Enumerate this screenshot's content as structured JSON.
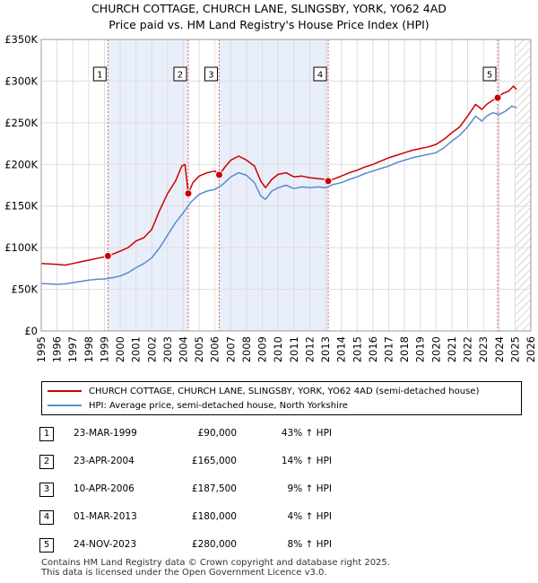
{
  "title_line1": "CHURCH COTTAGE, CHURCH LANE, SLINGSBY, YORK, YO62 4AD",
  "title_line2": "Price paid vs. HM Land Registry's House Price Index (HPI)",
  "chart_data": {
    "type": "line",
    "xlim": [
      1995,
      2026
    ],
    "ylim": [
      0,
      350000
    ],
    "x_ticks": [
      1995,
      1996,
      1997,
      1998,
      1999,
      2000,
      2001,
      2002,
      2003,
      2004,
      2005,
      2006,
      2007,
      2008,
      2009,
      2010,
      2011,
      2012,
      2013,
      2014,
      2015,
      2016,
      2017,
      2018,
      2019,
      2020,
      2021,
      2022,
      2023,
      2024,
      2025,
      2026
    ],
    "y_ticks": [
      {
        "value": 0,
        "label": "£0"
      },
      {
        "value": 50000,
        "label": "£50K"
      },
      {
        "value": 100000,
        "label": "£100K"
      },
      {
        "value": 150000,
        "label": "£150K"
      },
      {
        "value": 200000,
        "label": "£200K"
      },
      {
        "value": 250000,
        "label": "£250K"
      },
      {
        "value": 300000,
        "label": "£300K"
      },
      {
        "value": 350000,
        "label": "£350K"
      }
    ],
    "shaded_periods": [
      [
        1999.22,
        2004.31
      ],
      [
        2006.27,
        2013.17
      ],
      [
        2023.9,
        2024.0
      ]
    ],
    "future_hatch_from": 2025.0,
    "series": [
      {
        "name": "CHURCH COTTAGE, CHURCH LANE, SLINGSBY, YORK, YO62 4AD (semi-detached house)",
        "color": "#cc0000",
        "points": [
          [
            1995,
            81000
          ],
          [
            1995.5,
            80500
          ],
          [
            1996,
            80000
          ],
          [
            1996.5,
            79000
          ],
          [
            1997,
            81000
          ],
          [
            1997.5,
            83000
          ],
          [
            1998,
            85000
          ],
          [
            1998.5,
            87000
          ],
          [
            1999,
            89000
          ],
          [
            1999.22,
            90000
          ],
          [
            1999.5,
            92000
          ],
          [
            2000,
            96000
          ],
          [
            2000.5,
            100000
          ],
          [
            2001,
            108000
          ],
          [
            2001.5,
            112000
          ],
          [
            2002,
            122000
          ],
          [
            2002.5,
            145000
          ],
          [
            2003,
            165000
          ],
          [
            2003.5,
            180000
          ],
          [
            2003.9,
            198000
          ],
          [
            2004.1,
            200000
          ],
          [
            2004.31,
            165000
          ],
          [
            2004.6,
            178000
          ],
          [
            2005,
            186000
          ],
          [
            2005.5,
            190000
          ],
          [
            2006,
            192000
          ],
          [
            2006.27,
            187500
          ],
          [
            2006.6,
            196000
          ],
          [
            2007,
            205000
          ],
          [
            2007.5,
            210000
          ],
          [
            2008,
            205000
          ],
          [
            2008.5,
            198000
          ],
          [
            2008.9,
            180000
          ],
          [
            2009.2,
            172000
          ],
          [
            2009.6,
            182000
          ],
          [
            2010,
            188000
          ],
          [
            2010.5,
            190000
          ],
          [
            2011,
            185000
          ],
          [
            2011.5,
            186000
          ],
          [
            2012,
            184000
          ],
          [
            2012.5,
            183000
          ],
          [
            2013,
            182000
          ],
          [
            2013.17,
            180000
          ],
          [
            2013.6,
            183000
          ],
          [
            2014,
            186000
          ],
          [
            2014.5,
            190000
          ],
          [
            2015,
            193000
          ],
          [
            2015.5,
            197000
          ],
          [
            2016,
            200000
          ],
          [
            2016.5,
            204000
          ],
          [
            2017,
            208000
          ],
          [
            2017.5,
            211000
          ],
          [
            2018,
            214000
          ],
          [
            2018.5,
            217000
          ],
          [
            2019,
            219000
          ],
          [
            2019.5,
            221000
          ],
          [
            2020,
            224000
          ],
          [
            2020.5,
            230000
          ],
          [
            2021,
            238000
          ],
          [
            2021.5,
            245000
          ],
          [
            2022,
            258000
          ],
          [
            2022.5,
            272000
          ],
          [
            2022.9,
            266000
          ],
          [
            2023.2,
            272000
          ],
          [
            2023.6,
            277000
          ],
          [
            2023.9,
            280000
          ],
          [
            2024.2,
            285000
          ],
          [
            2024.6,
            288000
          ],
          [
            2024.9,
            294000
          ],
          [
            2025.1,
            290000
          ]
        ]
      },
      {
        "name": "HPI: Average price, semi-detached house, North Yorkshire",
        "color": "#5a8ccd",
        "points": [
          [
            1995,
            57000
          ],
          [
            1995.5,
            56500
          ],
          [
            1996,
            56000
          ],
          [
            1996.5,
            56500
          ],
          [
            1997,
            58000
          ],
          [
            1997.5,
            59500
          ],
          [
            1998,
            61000
          ],
          [
            1998.5,
            62000
          ],
          [
            1999,
            62500
          ],
          [
            1999.5,
            64000
          ],
          [
            2000,
            66000
          ],
          [
            2000.5,
            70000
          ],
          [
            2001,
            76000
          ],
          [
            2001.5,
            81000
          ],
          [
            2002,
            88000
          ],
          [
            2002.5,
            100000
          ],
          [
            2003,
            115000
          ],
          [
            2003.5,
            130000
          ],
          [
            2004,
            142000
          ],
          [
            2004.5,
            155000
          ],
          [
            2005,
            164000
          ],
          [
            2005.5,
            168000
          ],
          [
            2006,
            170000
          ],
          [
            2006.5,
            176000
          ],
          [
            2007,
            185000
          ],
          [
            2007.5,
            190000
          ],
          [
            2008,
            187000
          ],
          [
            2008.5,
            178000
          ],
          [
            2008.9,
            162000
          ],
          [
            2009.2,
            158000
          ],
          [
            2009.6,
            168000
          ],
          [
            2010,
            172000
          ],
          [
            2010.5,
            175000
          ],
          [
            2011,
            171000
          ],
          [
            2011.5,
            173000
          ],
          [
            2012,
            172000
          ],
          [
            2012.5,
            173000
          ],
          [
            2013,
            172000
          ],
          [
            2013.5,
            176000
          ],
          [
            2014,
            178000
          ],
          [
            2014.5,
            182000
          ],
          [
            2015,
            185000
          ],
          [
            2015.5,
            189000
          ],
          [
            2016,
            192000
          ],
          [
            2016.5,
            195000
          ],
          [
            2017,
            198000
          ],
          [
            2017.5,
            202000
          ],
          [
            2018,
            205000
          ],
          [
            2018.5,
            208000
          ],
          [
            2019,
            210000
          ],
          [
            2019.5,
            212000
          ],
          [
            2020,
            214000
          ],
          [
            2020.5,
            220000
          ],
          [
            2021,
            228000
          ],
          [
            2021.5,
            235000
          ],
          [
            2022,
            245000
          ],
          [
            2022.5,
            258000
          ],
          [
            2022.9,
            252000
          ],
          [
            2023.2,
            258000
          ],
          [
            2023.6,
            262000
          ],
          [
            2024,
            260000
          ],
          [
            2024.4,
            264000
          ],
          [
            2024.8,
            270000
          ],
          [
            2025.1,
            268000
          ]
        ]
      }
    ],
    "sales": [
      {
        "id": "1",
        "x": 1999.22,
        "price": 90000
      },
      {
        "id": "2",
        "x": 2004.31,
        "price": 165000
      },
      {
        "id": "3",
        "x": 2006.27,
        "price": 187500
      },
      {
        "id": "4",
        "x": 2013.17,
        "price": 180000
      },
      {
        "id": "5",
        "x": 2023.9,
        "price": 280000
      }
    ],
    "marker_labels": [
      "1",
      "2",
      "3",
      "4",
      "5"
    ]
  },
  "legend": {
    "property_label": "CHURCH COTTAGE, CHURCH LANE, SLINGSBY, YORK, YO62 4AD (semi-detached house)",
    "hpi_label": "HPI: Average price, semi-detached house, North Yorkshire",
    "property_color": "#cc0000",
    "hpi_color": "#5a8ccd"
  },
  "transactions": [
    {
      "num": "1",
      "date": "23-MAR-1999",
      "price": "£90,000",
      "hpi": "43% ↑ HPI"
    },
    {
      "num": "2",
      "date": "23-APR-2004",
      "price": "£165,000",
      "hpi": "14% ↑ HPI"
    },
    {
      "num": "3",
      "date": "10-APR-2006",
      "price": "£187,500",
      "hpi": "9% ↑ HPI"
    },
    {
      "num": "4",
      "date": "01-MAR-2013",
      "price": "£180,000",
      "hpi": "4% ↑ HPI"
    },
    {
      "num": "5",
      "date": "24-NOV-2023",
      "price": "£280,000",
      "hpi": "8% ↑ HPI"
    }
  ],
  "footer_line1": "Contains HM Land Registry data © Crown copyright and database right 2025.",
  "footer_line2": "This data is licensed under the Open Government Licence v3.0."
}
